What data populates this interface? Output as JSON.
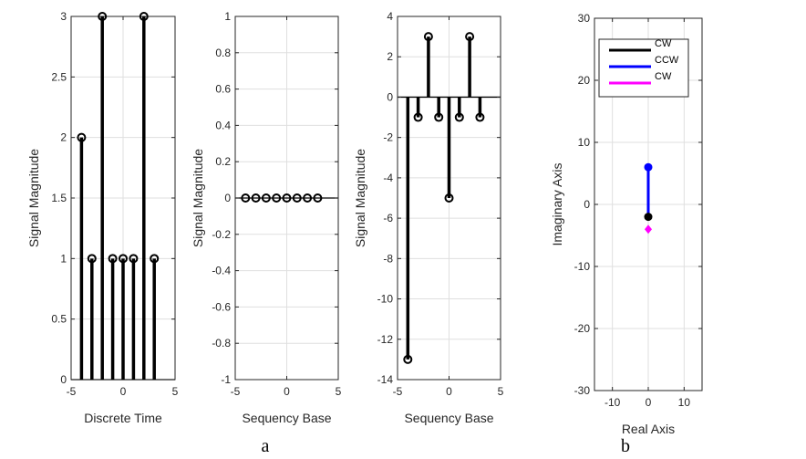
{
  "figure_captions": [
    "a",
    "b"
  ],
  "chart_data": [
    {
      "type": "stem",
      "xlabel": "Discrete Time",
      "ylabel": "Signal Magnitude",
      "xlim": [
        -5,
        5
      ],
      "ylim": [
        0,
        3
      ],
      "xticks": [
        "-5",
        "0",
        "5"
      ],
      "yticks": [
        "0",
        "0.5",
        "1",
        "1.5",
        "2",
        "2.5",
        "3"
      ],
      "grid": true,
      "x": [
        -4,
        -3,
        -2,
        -1,
        0,
        1,
        2,
        3
      ],
      "values": [
        2,
        1,
        3,
        1,
        1,
        1,
        3,
        1
      ]
    },
    {
      "type": "stem",
      "xlabel": "Sequency Base",
      "ylabel": "Signal Magnitude",
      "xlim": [
        -5,
        5
      ],
      "ylim": [
        -1,
        1
      ],
      "xticks": [
        "-5",
        "0",
        "5"
      ],
      "yticks": [
        "-1",
        "-0.8",
        "-0.6",
        "-0.4",
        "-0.2",
        "0",
        "0.2",
        "0.4",
        "0.6",
        "0.8",
        "1"
      ],
      "grid": true,
      "x": [
        -4,
        -3,
        -2,
        -1,
        0,
        1,
        2,
        3
      ],
      "values": [
        0,
        0,
        0,
        0,
        0,
        0,
        0,
        0
      ]
    },
    {
      "type": "stem",
      "xlabel": "Sequency Base",
      "ylabel": "Signal Magnitude",
      "xlim": [
        -5,
        5
      ],
      "ylim": [
        -14,
        4
      ],
      "xticks": [
        "-5",
        "0",
        "5"
      ],
      "yticks": [
        "-14",
        "-12",
        "-10",
        "-8",
        "-6",
        "-4",
        "-2",
        "0",
        "2",
        "4"
      ],
      "grid": true,
      "x": [
        -4,
        -3,
        -2,
        -1,
        0,
        1,
        2,
        3
      ],
      "values": [
        -13,
        -1,
        3,
        -1,
        -5,
        -1,
        3,
        -1
      ]
    },
    {
      "type": "line",
      "xlabel": "Real Axis",
      "ylabel": "Imaginary Axis",
      "xlim": [
        -15,
        15
      ],
      "ylim": [
        -30,
        30
      ],
      "xticks": [
        "-10",
        "0",
        "10"
      ],
      "yticks": [
        "-30",
        "-20",
        "-10",
        "0",
        "10",
        "20",
        "30"
      ],
      "grid": true,
      "legend_position": "top",
      "series": [
        {
          "name": "CW",
          "color": "#000000",
          "x": [
            0,
            0
          ],
          "y": [
            -2,
            -2
          ]
        },
        {
          "name": "CCW",
          "color": "#0000ff",
          "x": [
            0,
            0
          ],
          "y": [
            -2,
            6
          ]
        },
        {
          "name": "CW",
          "color": "#ff00ff",
          "x": [
            0,
            0
          ],
          "y": [
            -4,
            -4
          ]
        }
      ]
    }
  ]
}
